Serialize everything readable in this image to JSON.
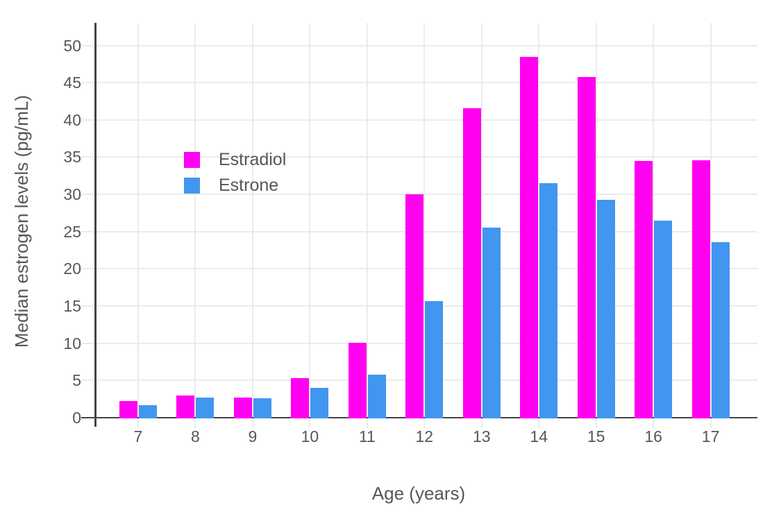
{
  "chart_data": {
    "type": "bar",
    "title": "",
    "xlabel": "Age (years)",
    "ylabel": "Median estrogen levels (pg/mL)",
    "categories": [
      7,
      8,
      9,
      10,
      11,
      12,
      13,
      14,
      15,
      16,
      17
    ],
    "series": [
      {
        "name": "Estradiol",
        "color": "#FF00F0",
        "values": [
          2.2,
          3.0,
          2.7,
          5.3,
          10.1,
          30.0,
          41.6,
          48.5,
          45.8,
          34.5,
          34.6
        ]
      },
      {
        "name": "Estrone",
        "color": "#4196F0",
        "values": [
          1.7,
          2.7,
          2.6,
          4.0,
          5.8,
          15.7,
          25.5,
          31.5,
          29.3,
          26.5,
          23.6
        ]
      }
    ],
    "ylim": [
      0,
      53
    ],
    "yticks": [
      0,
      5,
      10,
      15,
      20,
      25,
      30,
      35,
      40,
      45,
      50
    ],
    "grid": true,
    "legend_position": "inside-top-left",
    "style": {
      "background": "#ffffff",
      "grid_color": "#ebebeb",
      "axis_line_color": "#444444",
      "text_color": "#565656"
    }
  }
}
